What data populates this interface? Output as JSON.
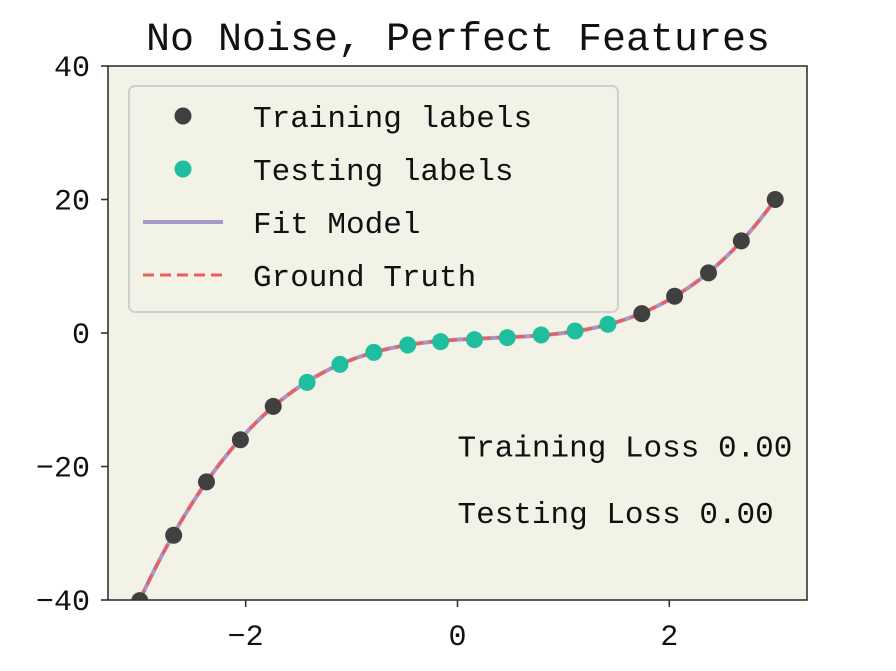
{
  "colors": {
    "plot_bg": "#f3f2e7",
    "training": "#404040",
    "testing": "#1fbe9f",
    "fit": "#a797c6",
    "truth": "#eb5e5e",
    "legend_border": "#d0d0d0",
    "legend_bg": "#f3f2e7"
  },
  "chart_data": {
    "type": "line",
    "title": "No Noise, Perfect Features",
    "xlabel": "",
    "ylabel": "",
    "xlim": [
      -3.3,
      3.3
    ],
    "ylim": [
      -40,
      40
    ],
    "xticks": [
      -2,
      0,
      2
    ],
    "xtick_labels": [
      "−2",
      "0",
      "2"
    ],
    "yticks": [
      -40,
      -20,
      0,
      20,
      40
    ],
    "ytick_labels": [
      "−40",
      "−20",
      "0",
      "20",
      "40"
    ],
    "legend_position": "top-left",
    "series": [
      {
        "name": "Training labels",
        "kind": "scatter",
        "x": [
          -3.0,
          -2.68,
          -2.37,
          -2.05,
          -1.74,
          1.74,
          2.05,
          2.37,
          2.68,
          3.0
        ],
        "y": [
          -40.1,
          -30.3,
          -22.3,
          -16.0,
          -11.0,
          2.9,
          5.5,
          9.0,
          13.8,
          20.0
        ]
      },
      {
        "name": "Testing labels",
        "kind": "scatter",
        "x": [
          -1.42,
          -1.11,
          -0.79,
          -0.47,
          -0.16,
          0.16,
          0.47,
          0.79,
          1.11,
          1.42
        ],
        "y": [
          -7.4,
          -4.7,
          -2.9,
          -1.8,
          -1.3,
          -1.0,
          -0.7,
          -0.3,
          0.3,
          1.3
        ]
      },
      {
        "name": "Fit Model",
        "kind": "line",
        "style": "solid",
        "formula": "y = x^3 - x^2 + x - 1",
        "x_range": [
          -3.0,
          3.0
        ]
      },
      {
        "name": "Ground Truth",
        "kind": "line",
        "style": "dashed",
        "formula": "y = x^3 - x^2 + x - 1",
        "x_range": [
          -3.0,
          3.0
        ]
      }
    ],
    "annotations": [
      {
        "text": "Training Loss 0.00",
        "x": 0.0,
        "y": -18.5
      },
      {
        "text": "Testing Loss 0.00",
        "x": 0.0,
        "y": -28.5
      }
    ]
  }
}
